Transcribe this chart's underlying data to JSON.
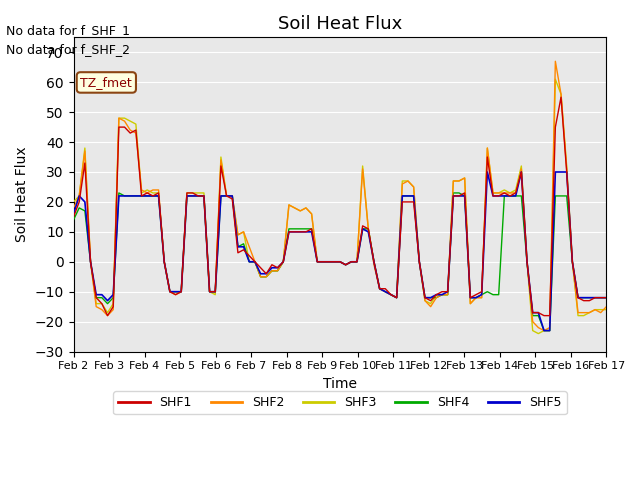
{
  "title": "Soil Heat Flux",
  "xlabel": "Time",
  "ylabel": "Soil Heat Flux",
  "ylim": [
    -30,
    75
  ],
  "yticks": [
    -30,
    -20,
    -10,
    0,
    10,
    20,
    30,
    40,
    50,
    60,
    70
  ],
  "note1": "No data for f_SHF_1",
  "note2": "No data for f_SHF_2",
  "legend_label": "TZ_fmet",
  "bg_color": "#e8e8e8",
  "series_colors": {
    "SHF1": "#cc0000",
    "SHF2": "#ff8800",
    "SHF3": "#cccc00",
    "SHF4": "#00aa00",
    "SHF5": "#0000cc"
  },
  "x_dates": [
    "Feb 2",
    "Feb 3",
    "Feb 4",
    "Feb 5",
    "Feb 6",
    "Feb 7",
    "Feb 8",
    "Feb 9",
    "Feb 10",
    "Feb 11",
    "Feb 12",
    "Feb 13",
    "Feb 14",
    "Feb 15",
    "Feb 16",
    "Feb 17"
  ],
  "SHF1": [
    15,
    20,
    33,
    0,
    -12,
    -14,
    -18,
    -15,
    45,
    45,
    43,
    44,
    22,
    23,
    22,
    23,
    0,
    -10,
    -11,
    -10,
    23,
    23,
    22,
    22,
    -10,
    -10,
    32,
    22,
    21,
    3,
    4,
    2,
    0,
    -2,
    -4,
    -1,
    -2,
    0,
    10,
    10,
    10,
    10,
    11,
    0,
    0,
    0,
    0,
    0,
    -1,
    0,
    0,
    12,
    11,
    0,
    -9,
    -9,
    -11,
    -12,
    20,
    20,
    20,
    0,
    -12,
    -13,
    -11,
    -10,
    -10,
    22,
    22,
    23,
    -12,
    -11,
    -10,
    35,
    22,
    22,
    23,
    22,
    23,
    30,
    0,
    -17,
    -17,
    -18,
    -18,
    45,
    55,
    30,
    0,
    -12,
    -13,
    -13,
    -12,
    -12,
    -12
  ],
  "SHF2": [
    18,
    22,
    37,
    0,
    -15,
    -16,
    -18,
    -16,
    48,
    47,
    44,
    43,
    24,
    23,
    24,
    24,
    0,
    -10,
    -11,
    -10,
    22,
    22,
    22,
    22,
    -10,
    -10,
    34,
    22,
    22,
    9,
    10,
    5,
    0,
    -5,
    -5,
    -3,
    -3,
    0,
    19,
    18,
    17,
    18,
    16,
    0,
    0,
    0,
    0,
    0,
    -1,
    0,
    0,
    31,
    11,
    -1,
    -9,
    -10,
    -11,
    -12,
    26,
    27,
    25,
    0,
    -13,
    -15,
    -12,
    -11,
    -11,
    27,
    27,
    28,
    -14,
    -12,
    -12,
    38,
    23,
    23,
    23,
    23,
    23,
    31,
    0,
    -20,
    -22,
    -23,
    -22,
    67,
    56,
    31,
    0,
    -17,
    -17,
    -17,
    -16,
    -17,
    -15
  ],
  "SHF3": [
    20,
    22,
    38,
    0,
    -14,
    -14,
    -17,
    -14,
    48,
    48,
    47,
    46,
    23,
    24,
    23,
    23,
    0,
    -10,
    -10,
    -10,
    23,
    23,
    23,
    23,
    -10,
    -11,
    35,
    22,
    22,
    9,
    10,
    0,
    0,
    -5,
    -5,
    -3,
    -3,
    0,
    19,
    18,
    17,
    18,
    16,
    0,
    0,
    0,
    0,
    0,
    -1,
    0,
    0,
    32,
    11,
    0,
    -9,
    -10,
    -11,
    -12,
    27,
    27,
    25,
    0,
    -13,
    -14,
    -11,
    -11,
    -11,
    27,
    27,
    28,
    -14,
    -12,
    -12,
    38,
    23,
    23,
    24,
    23,
    24,
    32,
    0,
    -23,
    -24,
    -23,
    -23,
    61,
    56,
    32,
    0,
    -18,
    -18,
    -17,
    -16,
    -16,
    -16
  ],
  "SHF4": [
    14,
    18,
    17,
    0,
    -12,
    -12,
    -14,
    -12,
    23,
    22,
    22,
    22,
    22,
    22,
    22,
    22,
    0,
    -10,
    -10,
    -10,
    22,
    22,
    22,
    22,
    -10,
    -10,
    22,
    22,
    22,
    5,
    6,
    0,
    0,
    -5,
    -5,
    -3,
    -3,
    0,
    11,
    11,
    11,
    11,
    11,
    0,
    0,
    0,
    0,
    0,
    -1,
    0,
    0,
    11,
    11,
    0,
    -9,
    -10,
    -11,
    -12,
    22,
    22,
    22,
    0,
    -12,
    -12,
    -12,
    -11,
    -11,
    23,
    23,
    22,
    -12,
    -12,
    -11,
    -10,
    -11,
    -11,
    22,
    22,
    22,
    22,
    0,
    -18,
    -18,
    -23,
    -23,
    22,
    22,
    22,
    0,
    -12,
    -12,
    -12,
    -12,
    -12,
    -12
  ],
  "SHF5": [
    16,
    22,
    20,
    0,
    -11,
    -11,
    -13,
    -11,
    22,
    22,
    22,
    22,
    22,
    22,
    22,
    22,
    0,
    -10,
    -10,
    -10,
    22,
    22,
    22,
    22,
    -10,
    -10,
    22,
    22,
    22,
    5,
    5,
    0,
    0,
    -4,
    -4,
    -2,
    -2,
    0,
    10,
    10,
    10,
    10,
    10,
    0,
    0,
    0,
    0,
    0,
    -1,
    0,
    0,
    11,
    10,
    0,
    -9,
    -10,
    -11,
    -12,
    22,
    22,
    22,
    0,
    -12,
    -12,
    -11,
    -11,
    -10,
    22,
    22,
    22,
    -12,
    -12,
    -11,
    30,
    22,
    22,
    22,
    22,
    22,
    30,
    0,
    -17,
    -17,
    -23,
    -23,
    30,
    30,
    30,
    0,
    -12,
    -12,
    -12,
    -12,
    -12,
    -12
  ]
}
